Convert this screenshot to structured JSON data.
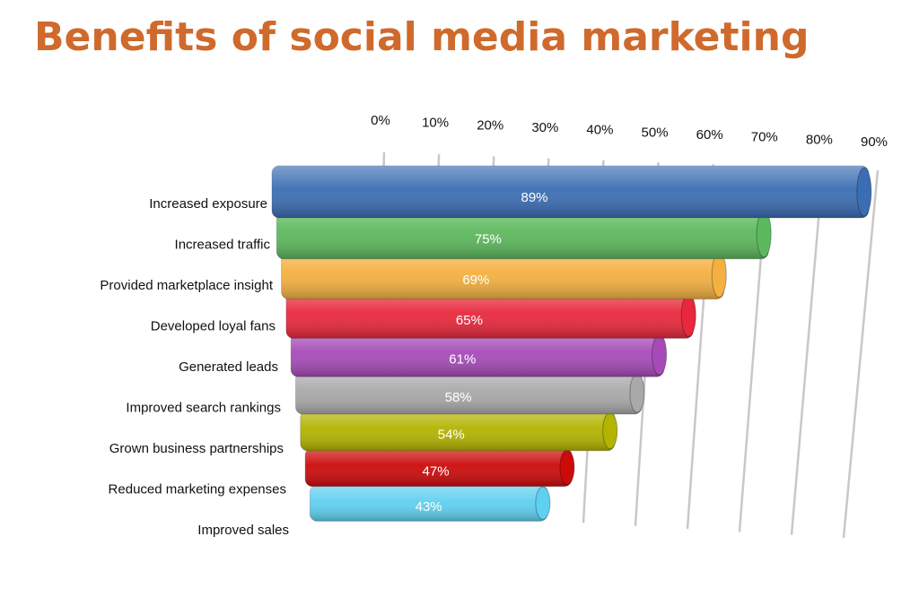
{
  "chart_data": {
    "type": "bar",
    "orientation": "horizontal",
    "title": "Benefits of social media marketing",
    "categories": [
      "Increased exposure",
      "Increased traffic",
      "Provided marketplace insight",
      "Developed loyal fans",
      "Generated leads",
      "Improved search rankings",
      "Grown business partnerships",
      "Reduced marketing expenses",
      "Improved sales"
    ],
    "values": [
      89,
      75,
      69,
      65,
      61,
      58,
      54,
      47,
      43
    ],
    "value_labels": [
      "89%",
      "75%",
      "69%",
      "65%",
      "61%",
      "58%",
      "54%",
      "47%",
      "43%"
    ],
    "colors": [
      "#3b6db3",
      "#5cb85c",
      "#f4b040",
      "#e8283c",
      "#a64ab8",
      "#a9a9a9",
      "#b3b300",
      "#cc0a0a",
      "#5fd0f0"
    ],
    "xlim": [
      0,
      90
    ],
    "xticks": [
      {
        "value": 0,
        "label": "0%"
      },
      {
        "value": 10,
        "label": "10%"
      },
      {
        "value": 20,
        "label": "20%"
      },
      {
        "value": 30,
        "label": "30%"
      },
      {
        "value": 40,
        "label": "40%"
      },
      {
        "value": 50,
        "label": "50%"
      },
      {
        "value": 60,
        "label": "60%"
      },
      {
        "value": 70,
        "label": "70%"
      },
      {
        "value": 80,
        "label": "80%"
      },
      {
        "value": 90,
        "label": "90%"
      }
    ],
    "grid": true
  }
}
